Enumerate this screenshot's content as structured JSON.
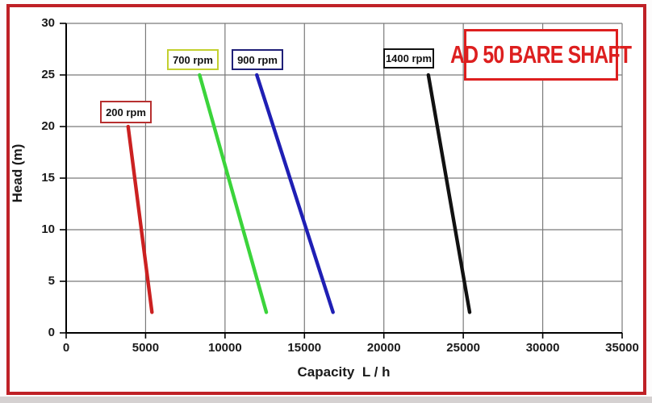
{
  "chart_data": {
    "type": "line",
    "title": "AD 50 BARE SHAFT",
    "xlabel": "Capacity  L / h",
    "ylabel": "Head (m)",
    "xlim": [
      0,
      35000
    ],
    "ylim": [
      0,
      30
    ],
    "xticks": [
      0,
      5000,
      10000,
      15000,
      20000,
      25000,
      30000,
      35000
    ],
    "yticks": [
      0,
      5,
      10,
      15,
      20,
      25,
      30
    ],
    "grid": true,
    "legend_position": "labels-above-each-curve",
    "gridline_color": "#7a7a7a",
    "axis_color": "#000000",
    "title_color": "#dd1f1f",
    "frame_color": "#bf2026",
    "series": [
      {
        "name": "200 rpm",
        "color": "#cb2121",
        "label_border": "#b73030",
        "points": [
          [
            3900,
            20
          ],
          [
            5400,
            2
          ]
        ]
      },
      {
        "name": "700 rpm",
        "color": "#3bd43b",
        "label_border": "#c3d02f",
        "points": [
          [
            8400,
            25
          ],
          [
            12600,
            2
          ]
        ]
      },
      {
        "name": "900 rpm",
        "color": "#1f1fb4",
        "label_border": "#1f1f78",
        "points": [
          [
            12000,
            25
          ],
          [
            16800,
            2
          ]
        ]
      },
      {
        "name": "1400 rpm",
        "color": "#111111",
        "label_border": "#111111",
        "points": [
          [
            22800,
            25
          ],
          [
            25400,
            2
          ]
        ]
      }
    ]
  }
}
